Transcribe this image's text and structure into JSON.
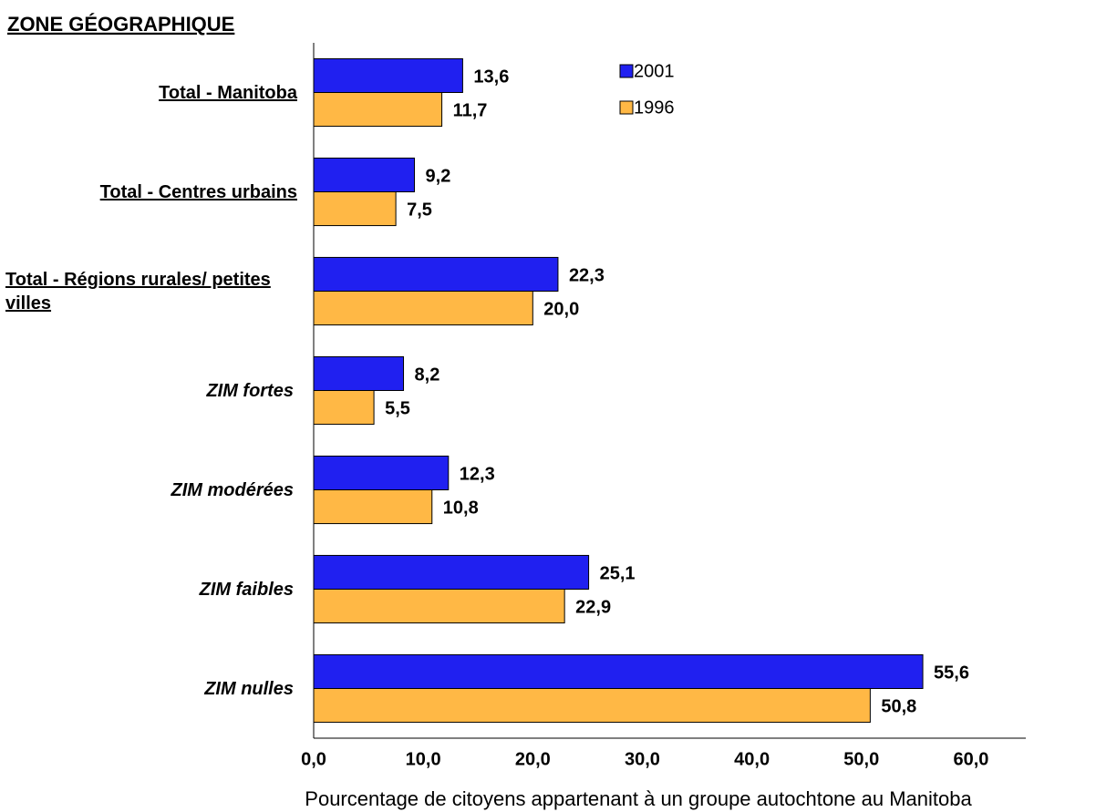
{
  "chart_data": {
    "type": "bar",
    "orientation": "horizontal",
    "title": "ZONE GÉOGRAPHIQUE",
    "xlabel": "Pourcentage de citoyens appartenant à un groupe autochtone au Manitoba",
    "categories": [
      "Total - Manitoba",
      "Total - Centres urbains",
      "Total - Régions rurales/ petites villes",
      "ZIM fortes",
      "ZIM modérées",
      "ZIM faibles",
      "ZIM nulles"
    ],
    "series": [
      {
        "name": "2001",
        "color": "#2020f0",
        "values": [
          13.6,
          9.2,
          22.3,
          8.2,
          12.3,
          25.1,
          55.6
        ],
        "value_labels": [
          "13,6",
          "9,2",
          "22,3",
          "8,2",
          "12,3",
          "25,1",
          "55,6"
        ]
      },
      {
        "name": "1996",
        "color": "#ffb845",
        "values": [
          11.7,
          7.5,
          20.0,
          5.5,
          10.8,
          22.9,
          50.8
        ],
        "value_labels": [
          "11,7",
          "7,5",
          "20,0",
          "5,5",
          "10,8",
          "22,9",
          "50,8"
        ]
      }
    ],
    "xlim": [
      0,
      65
    ],
    "xticks": [
      {
        "value": 0,
        "label": "0,0"
      },
      {
        "value": 10,
        "label": "10,0"
      },
      {
        "value": 20,
        "label": "20,0"
      },
      {
        "value": 30,
        "label": "30,0"
      },
      {
        "value": 40,
        "label": "40,0"
      },
      {
        "value": 50,
        "label": "50,0"
      },
      {
        "value": 60,
        "label": "60,0"
      }
    ],
    "legend": "top-right",
    "grid": false
  }
}
